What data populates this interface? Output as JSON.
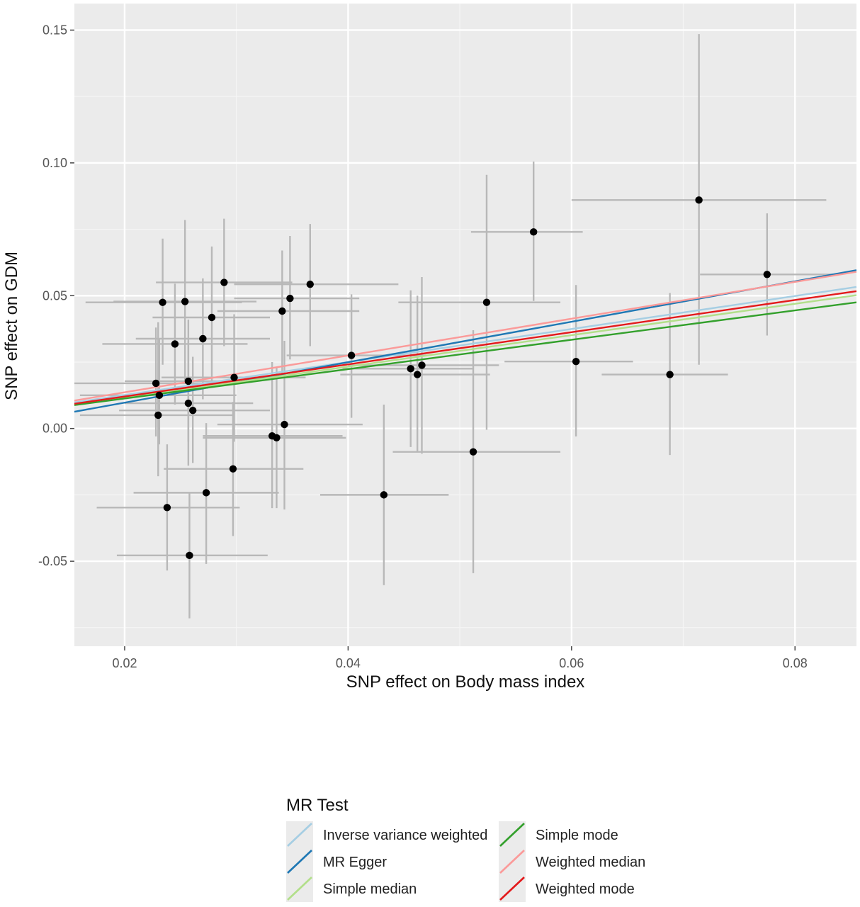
{
  "chart_data": {
    "type": "scatter",
    "xlabel": "SNP effect on Body mass index",
    "ylabel": "SNP effect on GDM",
    "xlim": [
      0.0155,
      0.0855
    ],
    "ylim": [
      -0.082,
      0.16
    ],
    "x_ticks": [
      0.02,
      0.04,
      0.06,
      0.08
    ],
    "x_tick_labels": [
      "0.02",
      "0.04",
      "0.06",
      "0.08"
    ],
    "y_ticks": [
      -0.05,
      0.0,
      0.05,
      0.1,
      0.15
    ],
    "y_tick_labels": [
      "-0.05",
      "0.00",
      "0.05",
      "0.10",
      "0.15"
    ],
    "grid": true,
    "background": "#ebebeb",
    "legend": {
      "title": "MR Test",
      "placement": "bottom",
      "entries": [
        {
          "label": "Inverse variance weighted",
          "color": "#a6cee3"
        },
        {
          "label": "MR Egger",
          "color": "#1f78b4"
        },
        {
          "label": "Simple median",
          "color": "#b2df8a"
        },
        {
          "label": "Simple mode",
          "color": "#33a02c"
        },
        {
          "label": "Weighted median",
          "color": "#fb9a99"
        },
        {
          "label": "Weighted mode",
          "color": "#e31a1c"
        }
      ]
    },
    "lines": [
      {
        "method": "Inverse variance weighted",
        "color": "#a6cee3",
        "x": [
          0.0155,
          0.0855
        ],
        "y": [
          0.0098,
          0.0533
        ]
      },
      {
        "method": "MR Egger",
        "color": "#1f78b4",
        "x": [
          0.0155,
          0.0855
        ],
        "y": [
          0.0063,
          0.0596
        ]
      },
      {
        "method": "Simple median",
        "color": "#b2df8a",
        "x": [
          0.0155,
          0.0855
        ],
        "y": [
          0.0088,
          0.0502
        ]
      },
      {
        "method": "Simple mode",
        "color": "#33a02c",
        "x": [
          0.0155,
          0.0855
        ],
        "y": [
          0.0088,
          0.0475
        ]
      },
      {
        "method": "Weighted median",
        "color": "#fb9a99",
        "x": [
          0.0155,
          0.0855
        ],
        "y": [
          0.0105,
          0.059
        ]
      },
      {
        "method": "Weighted mode",
        "color": "#e31a1c",
        "x": [
          0.0155,
          0.0855
        ],
        "y": [
          0.0093,
          0.0517
        ]
      }
    ],
    "points": [
      {
        "x": 0.0228,
        "y": 0.017,
        "xmin": 0.0155,
        "xmax": 0.0298,
        "ymin": -0.003,
        "ymax": 0.038
      },
      {
        "x": 0.0231,
        "y": 0.0125,
        "xmin": 0.016,
        "xmax": 0.03,
        "ymin": -0.006,
        "ymax": 0.034
      },
      {
        "x": 0.023,
        "y": 0.005,
        "xmin": 0.016,
        "xmax": 0.0298,
        "ymin": -0.018,
        "ymax": 0.04
      },
      {
        "x": 0.0234,
        "y": 0.0475,
        "xmin": 0.0165,
        "xmax": 0.0305,
        "ymin": 0.024,
        "ymax": 0.0715
      },
      {
        "x": 0.0238,
        "y": -0.0298,
        "xmin": 0.0175,
        "xmax": 0.0303,
        "ymin": -0.0535,
        "ymax": -0.006
      },
      {
        "x": 0.0245,
        "y": 0.0318,
        "xmin": 0.018,
        "xmax": 0.031,
        "ymin": 0.009,
        "ymax": 0.0545
      },
      {
        "x": 0.0254,
        "y": 0.0478,
        "xmin": 0.019,
        "xmax": 0.0318,
        "ymin": 0.017,
        "ymax": 0.0785
      },
      {
        "x": 0.0257,
        "y": 0.0178,
        "xmin": 0.02,
        "xmax": 0.0315,
        "ymin": -0.005,
        "ymax": 0.041
      },
      {
        "x": 0.0257,
        "y": 0.0095,
        "xmin": 0.02,
        "xmax": 0.0315,
        "ymin": -0.014,
        "ymax": 0.033
      },
      {
        "x": 0.0258,
        "y": -0.0478,
        "xmin": 0.0193,
        "xmax": 0.0328,
        "ymin": -0.0715,
        "ymax": -0.024
      },
      {
        "x": 0.0261,
        "y": 0.0068,
        "xmin": 0.0195,
        "xmax": 0.033,
        "ymin": -0.013,
        "ymax": 0.027
      },
      {
        "x": 0.027,
        "y": 0.0338,
        "xmin": 0.021,
        "xmax": 0.033,
        "ymin": 0.011,
        "ymax": 0.0565
      },
      {
        "x": 0.0273,
        "y": -0.0242,
        "xmin": 0.0208,
        "xmax": 0.0338,
        "ymin": -0.051,
        "ymax": 0.002
      },
      {
        "x": 0.0278,
        "y": 0.0418,
        "xmin": 0.0225,
        "xmax": 0.033,
        "ymin": 0.0155,
        "ymax": 0.0685
      },
      {
        "x": 0.0289,
        "y": 0.055,
        "xmin": 0.0228,
        "xmax": 0.035,
        "ymin": 0.031,
        "ymax": 0.079
      },
      {
        "x": 0.0297,
        "y": -0.0152,
        "xmin": 0.0235,
        "xmax": 0.036,
        "ymin": -0.0405,
        "ymax": 0.01
      },
      {
        "x": 0.0298,
        "y": 0.0192,
        "xmin": 0.0233,
        "xmax": 0.0362,
        "ymin": -0.005,
        "ymax": 0.043
      },
      {
        "x": 0.0332,
        "y": -0.0028,
        "xmin": 0.027,
        "xmax": 0.0395,
        "ymin": -0.03,
        "ymax": 0.025
      },
      {
        "x": 0.0336,
        "y": -0.0035,
        "xmin": 0.027,
        "xmax": 0.0398,
        "ymin": -0.03,
        "ymax": 0.023
      },
      {
        "x": 0.0341,
        "y": 0.0442,
        "xmin": 0.0283,
        "xmax": 0.041,
        "ymin": 0.019,
        "ymax": 0.067
      },
      {
        "x": 0.0343,
        "y": 0.0015,
        "xmin": 0.0283,
        "xmax": 0.0413,
        "ymin": -0.0305,
        "ymax": 0.033
      },
      {
        "x": 0.0348,
        "y": 0.049,
        "xmin": 0.0298,
        "xmax": 0.041,
        "ymin": 0.026,
        "ymax": 0.0725
      },
      {
        "x": 0.0366,
        "y": 0.0543,
        "xmin": 0.0298,
        "xmax": 0.0445,
        "ymin": 0.031,
        "ymax": 0.077
      },
      {
        "x": 0.0403,
        "y": 0.0275,
        "xmin": 0.0345,
        "xmax": 0.047,
        "ymin": 0.004,
        "ymax": 0.0505
      },
      {
        "x": 0.0432,
        "y": -0.025,
        "xmin": 0.0375,
        "xmax": 0.049,
        "ymin": -0.059,
        "ymax": 0.009
      },
      {
        "x": 0.0456,
        "y": 0.0225,
        "xmin": 0.0395,
        "xmax": 0.0512,
        "ymin": -0.007,
        "ymax": 0.052
      },
      {
        "x": 0.0462,
        "y": 0.0203,
        "xmin": 0.0393,
        "xmax": 0.0527,
        "ymin": -0.009,
        "ymax": 0.05
      },
      {
        "x": 0.0466,
        "y": 0.0238,
        "xmin": 0.04,
        "xmax": 0.0535,
        "ymin": -0.0095,
        "ymax": 0.057
      },
      {
        "x": 0.0512,
        "y": -0.0088,
        "xmin": 0.044,
        "xmax": 0.059,
        "ymin": -0.0545,
        "ymax": 0.037
      },
      {
        "x": 0.0524,
        "y": 0.0475,
        "xmin": 0.0445,
        "xmax": 0.059,
        "ymin": -0.0005,
        "ymax": 0.0955
      },
      {
        "x": 0.0566,
        "y": 0.074,
        "xmin": 0.051,
        "xmax": 0.061,
        "ymin": 0.048,
        "ymax": 0.1005
      },
      {
        "x": 0.0604,
        "y": 0.0252,
        "xmin": 0.054,
        "xmax": 0.0655,
        "ymin": -0.003,
        "ymax": 0.054
      },
      {
        "x": 0.0688,
        "y": 0.0203,
        "xmin": 0.0627,
        "xmax": 0.074,
        "ymin": -0.01,
        "ymax": 0.051
      },
      {
        "x": 0.0714,
        "y": 0.086,
        "xmin": 0.06,
        "xmax": 0.0828,
        "ymin": 0.024,
        "ymax": 0.1485
      },
      {
        "x": 0.0775,
        "y": 0.058,
        "xmin": 0.0715,
        "xmax": 0.0835,
        "ymin": 0.035,
        "ymax": 0.081
      }
    ]
  }
}
